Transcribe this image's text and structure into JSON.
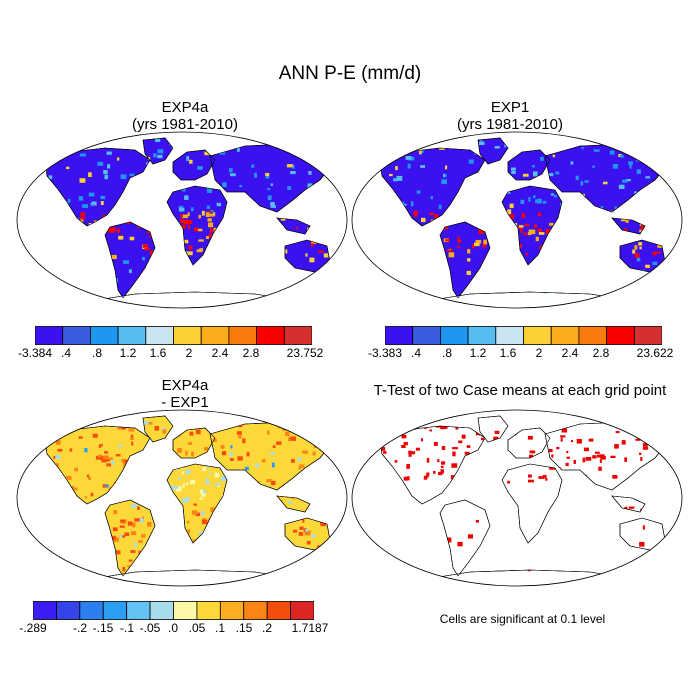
{
  "title": "ANN P-E (mm/d)",
  "colors": {
    "pe_scale": [
      "#3b11f0",
      "#3a5ce0",
      "#1f97f1",
      "#55bdf0",
      "#c9e4ee",
      "#fdd036",
      "#fbac1b",
      "#f97b0c",
      "#fb0000",
      "#d52f2f"
    ],
    "diff_scale": [
      "#3b1ef2",
      "#3543ea",
      "#2d7ff0",
      "#2e9ef5",
      "#62c3f4",
      "#a8dbee",
      "#fbf9a8",
      "#fdd839",
      "#fcae22",
      "#fb8414",
      "#f64d0d",
      "#de2525"
    ],
    "ttest": "#f00000"
  },
  "panels": {
    "p1": {
      "title_line1": "EXP4a",
      "title_line2": "(yrs 1981-2010)",
      "colorbar_labels": [
        "-3.384",
        ".4",
        ".8",
        "1.2",
        "1.6",
        "2",
        "2.4",
        "2.8",
        "23.752"
      ]
    },
    "p2": {
      "title_line1": "EXP1",
      "title_line2": "(yrs 1981-2010)",
      "colorbar_labels": [
        "-3.383",
        ".4",
        ".8",
        "1.2",
        "1.6",
        "2",
        "2.4",
        "2.8",
        "23.622"
      ]
    },
    "p3": {
      "title_line1": "EXP4a",
      "title_line2": "- EXP1",
      "colorbar_labels": [
        "-.289",
        "-.2",
        "-.15",
        "-.1",
        "-.05",
        ".0",
        ".05",
        ".1",
        ".15",
        ".2",
        "1.7187"
      ]
    },
    "p4": {
      "title": "T-Test of two Case means at each grid point",
      "note": "Cells are significant at 0.1 level"
    }
  }
}
